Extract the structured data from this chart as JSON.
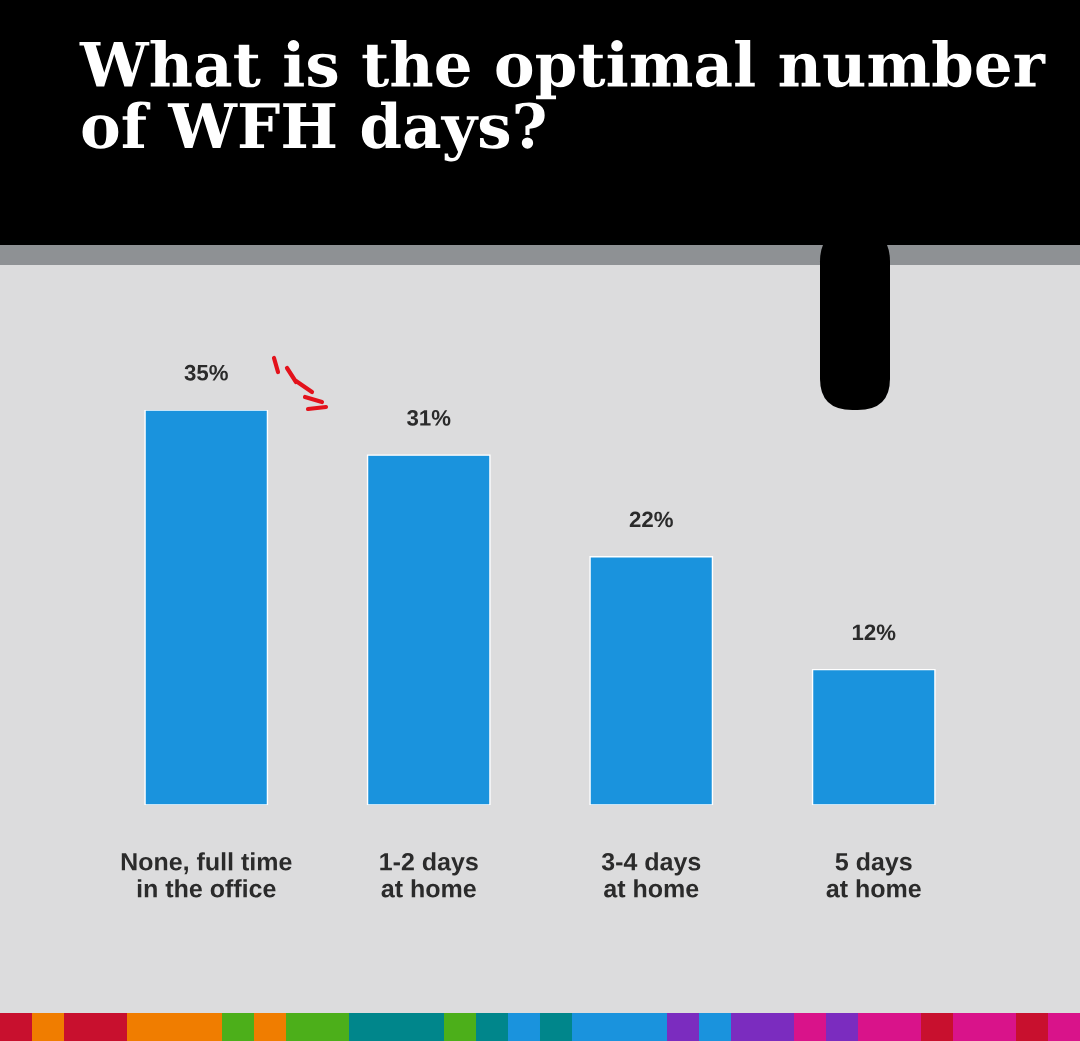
{
  "chart_data": {
    "type": "bar",
    "title": "What is the optimal number\nof WFH days?",
    "categories": [
      "None, full time\nin the office",
      "1-2 days\nat home",
      "3-4 days\nat home",
      "5 days\nat home"
    ],
    "values": [
      35,
      31,
      22,
      12
    ],
    "value_labels": [
      "35%",
      "31%",
      "22%",
      "12%"
    ],
    "color": "#1a93dd"
  }
}
